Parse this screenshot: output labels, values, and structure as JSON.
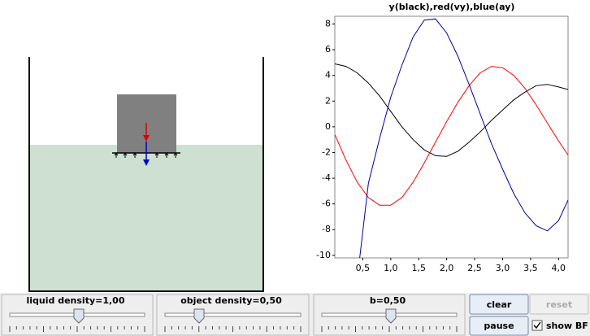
{
  "chart_data": {
    "type": "line",
    "title": "y(black),red(vy),blue(ay)",
    "x": [
      0,
      0.2,
      0.4,
      0.6,
      0.8,
      1.0,
      1.2,
      1.4,
      1.6,
      1.8,
      2.0,
      2.2,
      2.4,
      2.6,
      2.8,
      3.0,
      3.2,
      3.4,
      3.6,
      3.8,
      4.0,
      4.17
    ],
    "series": [
      {
        "color": "#000000",
        "values": [
          4.9,
          4.7,
          4.2,
          3.4,
          2.4,
          1.2,
          0.0,
          -1.0,
          -1.8,
          -2.25,
          -2.3,
          -1.9,
          -1.2,
          -0.4,
          0.5,
          1.3,
          2.1,
          2.7,
          3.2,
          3.3,
          3.1,
          2.9
        ]
      },
      {
        "color": "#ff0000",
        "values": [
          -0.6,
          -2.6,
          -4.3,
          -5.5,
          -6.1,
          -6.1,
          -5.5,
          -4.3,
          -2.8,
          -1.2,
          0.4,
          1.9,
          3.2,
          4.2,
          4.7,
          4.6,
          4.0,
          3.0,
          1.7,
          0.3,
          -1.1,
          -2.2
        ]
      },
      {
        "color": "#0000a0",
        "values": [
          null,
          null,
          -11.9,
          -4.4,
          -0.9,
          2.3,
          4.8,
          7.0,
          8.3,
          8.4,
          7.3,
          5.5,
          3.3,
          1.0,
          -1.3,
          -3.3,
          -5.2,
          -6.7,
          -7.7,
          -8.1,
          -7.3,
          -5.7
        ]
      }
    ],
    "xlim": [
      0,
      4.17
    ],
    "ylim": [
      -10.2,
      8.6
    ],
    "xticks": [
      {
        "value": 0.5,
        "label": "0,5"
      },
      {
        "value": 1.0,
        "label": "1,0"
      },
      {
        "value": 1.5,
        "label": "1,5"
      },
      {
        "value": 2.0,
        "label": "2,0"
      },
      {
        "value": 2.5,
        "label": "2,5"
      },
      {
        "value": 3.0,
        "label": "3,0"
      },
      {
        "value": 3.5,
        "label": "3,5"
      },
      {
        "value": 4.0,
        "label": "4,0"
      }
    ],
    "yticks": [
      8,
      6,
      4,
      2,
      0,
      -2,
      -4,
      -6,
      -8,
      -10
    ]
  },
  "controls": {
    "sliders": [
      "liquid density=1,00",
      "object density=0,50",
      "b=0,50"
    ],
    "buttons": {
      "clear": "clear",
      "reset": "reset",
      "pause": "pause"
    },
    "checkbox": "show BF"
  }
}
